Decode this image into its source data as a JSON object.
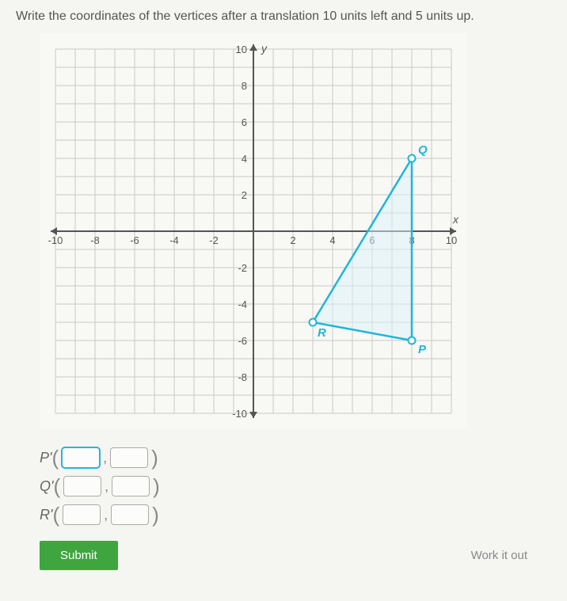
{
  "prompt": "Write the coordinates of the vertices after a translation 10 units left and 5 units up.",
  "graph": {
    "xlim": [
      -10,
      10
    ],
    "ylim": [
      -10,
      10
    ],
    "tick_step": 2,
    "xticks_neg": [
      -10,
      -8,
      -6,
      -4,
      -2
    ],
    "xticks_pos": [
      2,
      4,
      6,
      8,
      10
    ],
    "yticks_pos": [
      2,
      4,
      6,
      8,
      10
    ],
    "yticks_neg": [
      -2,
      -4,
      -6,
      -8,
      -10
    ],
    "grid_color": "#c8c8c4",
    "axis_color": "#555555",
    "background_color": "#f8f8f5",
    "axis_label_x": "x",
    "axis_label_y": "y",
    "tick_fontsize": 13,
    "label_fontsize": 14,
    "shape_stroke": "#1fb6d9",
    "shape_fill": "#d9f2f8",
    "shape_stroke_width": 2.5,
    "point_fill": "#ffffff",
    "points": {
      "P": {
        "x": 8,
        "y": -6
      },
      "Q": {
        "x": 8,
        "y": 4
      },
      "R": {
        "x": 3,
        "y": -5
      }
    }
  },
  "answers": [
    {
      "label": "P'"
    },
    {
      "label": "Q'"
    },
    {
      "label": "R'"
    }
  ],
  "buttons": {
    "submit": "Submit",
    "work": "Work it out"
  }
}
